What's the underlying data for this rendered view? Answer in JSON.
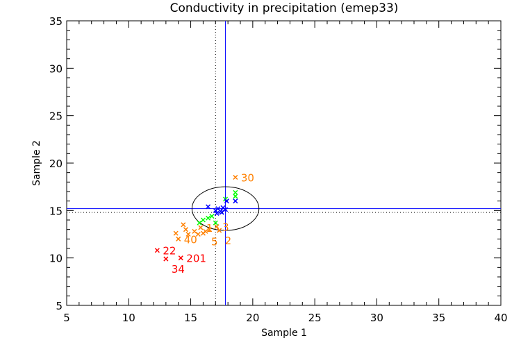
{
  "chart_data": {
    "type": "scatter",
    "title": "Conductivity in precipitation (emep33)",
    "xlabel": "Sample 1",
    "ylabel": "Sample 2",
    "xlim": [
      5,
      40
    ],
    "ylim": [
      5,
      35
    ],
    "xticks": [
      5,
      10,
      15,
      20,
      25,
      30,
      35,
      40
    ],
    "yticks": [
      5,
      10,
      15,
      20,
      25,
      30,
      35
    ],
    "x_minor_step": 1,
    "y_minor_step": 1,
    "grid": false,
    "legend": "none",
    "reference_lines": {
      "solid_blue": {
        "x": 17.8,
        "y": 15.2,
        "color": "#0000ff"
      },
      "dotted_black": {
        "x": 17.0,
        "y": 14.8,
        "color": "#000000"
      }
    },
    "ellipse": {
      "cx": 17.8,
      "cy": 15.2,
      "rx": 2.7,
      "ry": 2.3,
      "color": "#000000"
    },
    "series": [
      {
        "name": "outlier-red",
        "color": "#ff0000",
        "points": [
          {
            "x": 12.3,
            "y": 10.8,
            "label": "22"
          },
          {
            "x": 13.0,
            "y": 9.9,
            "label": "34"
          },
          {
            "x": 14.2,
            "y": 10.0,
            "label": "201"
          }
        ]
      },
      {
        "name": "flagged-orange",
        "color": "#ff8000",
        "points": [
          {
            "x": 18.6,
            "y": 18.5,
            "label": "30"
          },
          {
            "x": 14.0,
            "y": 12.0,
            "label": "40"
          },
          {
            "x": 15.8,
            "y": 13.2,
            "label": "1"
          },
          {
            "x": 16.2,
            "y": 12.8,
            "label": "5"
          },
          {
            "x": 17.1,
            "y": 13.3,
            "label": "3"
          },
          {
            "x": 17.3,
            "y": 12.9,
            "label": "2"
          },
          {
            "x": 13.8,
            "y": 12.6,
            "label": ""
          },
          {
            "x": 14.4,
            "y": 13.5,
            "label": ""
          },
          {
            "x": 14.6,
            "y": 13.0,
            "label": ""
          },
          {
            "x": 14.8,
            "y": 12.5,
            "label": ""
          },
          {
            "x": 15.3,
            "y": 12.8,
            "label": ""
          },
          {
            "x": 15.6,
            "y": 12.5,
            "label": ""
          },
          {
            "x": 16.0,
            "y": 12.6,
            "label": ""
          },
          {
            "x": 16.5,
            "y": 13.0,
            "label": ""
          }
        ]
      },
      {
        "name": "normal-green",
        "color": "#00ff00",
        "points": [
          {
            "x": 18.6,
            "y": 16.9,
            "label": ""
          },
          {
            "x": 18.6,
            "y": 16.5,
            "label": ""
          },
          {
            "x": 17.8,
            "y": 16.2,
            "label": ""
          },
          {
            "x": 16.7,
            "y": 14.4,
            "label": ""
          },
          {
            "x": 16.4,
            "y": 14.2,
            "label": ""
          },
          {
            "x": 16.0,
            "y": 14.0,
            "label": ""
          },
          {
            "x": 15.7,
            "y": 13.7,
            "label": ""
          },
          {
            "x": 17.0,
            "y": 13.7,
            "label": ""
          }
        ]
      },
      {
        "name": "normal-blue",
        "color": "#0000ff",
        "points": [
          {
            "x": 18.6,
            "y": 16.0,
            "label": ""
          },
          {
            "x": 17.9,
            "y": 16.0,
            "label": ""
          },
          {
            "x": 16.4,
            "y": 15.4,
            "label": ""
          },
          {
            "x": 17.0,
            "y": 15.0,
            "label": ""
          },
          {
            "x": 17.2,
            "y": 15.2,
            "label": ""
          },
          {
            "x": 17.4,
            "y": 14.9,
            "label": ""
          },
          {
            "x": 17.6,
            "y": 15.3,
            "label": ""
          },
          {
            "x": 17.8,
            "y": 15.1,
            "label": ""
          },
          {
            "x": 17.1,
            "y": 14.7,
            "label": ""
          },
          {
            "x": 17.5,
            "y": 14.8,
            "label": ""
          }
        ]
      }
    ]
  }
}
